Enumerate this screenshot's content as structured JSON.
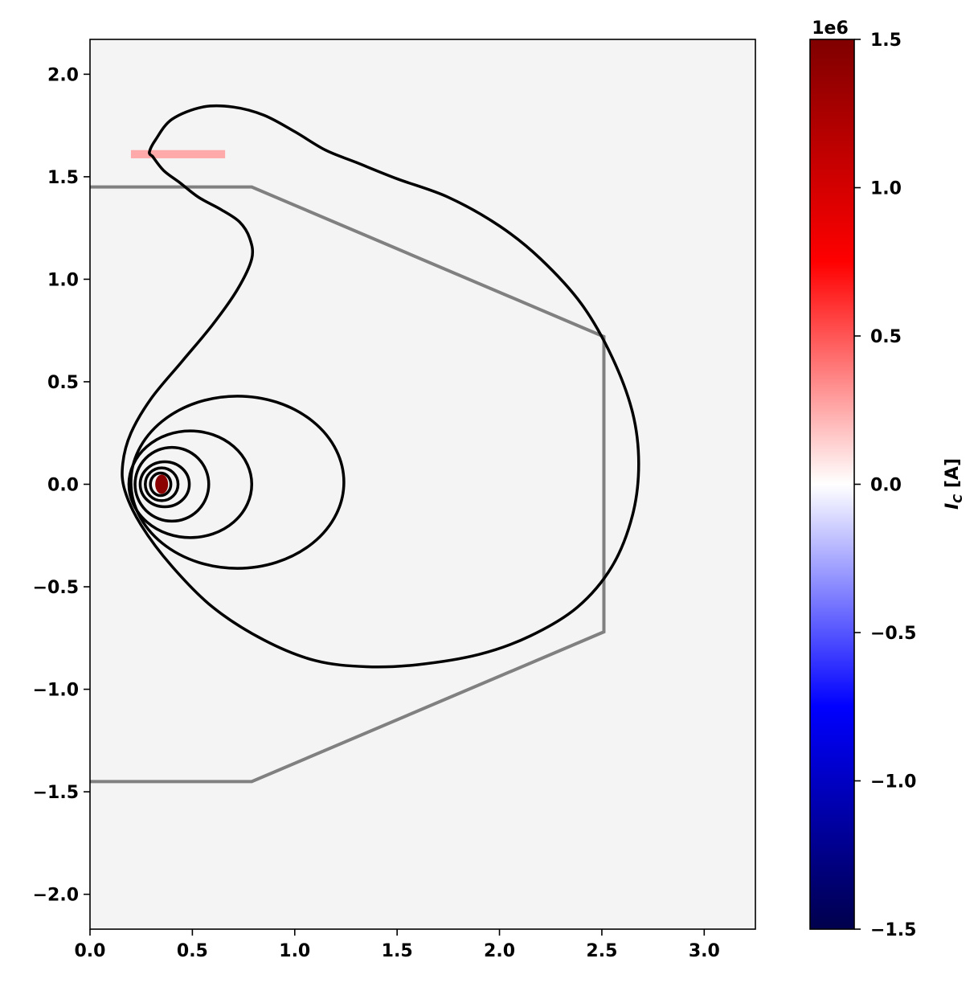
{
  "chart_data": [
    {
      "type": "contour",
      "xlim": [
        0,
        3.25
      ],
      "ylim": [
        -2.17,
        2.17
      ],
      "background": "#f4f4f4",
      "x_ticks": [
        "0.0",
        "0.5",
        "1.0",
        "1.5",
        "2.0",
        "2.5",
        "3.0"
      ],
      "x_tick_values": [
        0,
        0.5,
        1.0,
        1.5,
        2.0,
        2.5,
        3.0
      ],
      "y_ticks": [
        "2.0",
        "1.5",
        "1.0",
        "0.5",
        "0.0",
        "−0.5",
        "−1.0",
        "−1.5",
        "−2.0"
      ],
      "y_tick_values": [
        2.0,
        1.5,
        1.0,
        0.5,
        0.0,
        -0.5,
        -1.0,
        -1.5,
        -2.0
      ],
      "limiter": {
        "color": "#808080",
        "points": [
          [
            0.0,
            1.45
          ],
          [
            0.79,
            1.45
          ],
          [
            2.51,
            0.72
          ],
          [
            2.51,
            -0.72
          ],
          [
            0.79,
            -1.45
          ],
          [
            0.0,
            -1.45
          ]
        ]
      },
      "coil": {
        "color": "#ffaaaa",
        "x_range": [
          0.2,
          0.66
        ],
        "y_range": [
          1.59,
          1.63
        ]
      },
      "magnetic_axis": {
        "r": 0.35,
        "z": 0.0,
        "color": "#8b0000"
      },
      "flux_contours": [
        {
          "kind": "separatrix",
          "points": [
            [
              0.305,
              1.6
            ],
            [
              0.29,
              1.62
            ],
            [
              0.32,
              1.68
            ],
            [
              0.4,
              1.78
            ],
            [
              0.55,
              1.84
            ],
            [
              0.7,
              1.84
            ],
            [
              0.85,
              1.8
            ],
            [
              1.0,
              1.72
            ],
            [
              1.15,
              1.63
            ],
            [
              1.3,
              1.57
            ],
            [
              1.5,
              1.49
            ],
            [
              1.75,
              1.4
            ],
            [
              2.0,
              1.26
            ],
            [
              2.2,
              1.1
            ],
            [
              2.4,
              0.88
            ],
            [
              2.55,
              0.62
            ],
            [
              2.65,
              0.35
            ],
            [
              2.68,
              0.1
            ],
            [
              2.65,
              -0.15
            ],
            [
              2.55,
              -0.4
            ],
            [
              2.38,
              -0.6
            ],
            [
              2.15,
              -0.74
            ],
            [
              1.9,
              -0.83
            ],
            [
              1.6,
              -0.88
            ],
            [
              1.35,
              -0.89
            ],
            [
              1.1,
              -0.86
            ],
            [
              0.85,
              -0.76
            ],
            [
              0.6,
              -0.6
            ],
            [
              0.4,
              -0.4
            ],
            [
              0.25,
              -0.2
            ],
            [
              0.17,
              -0.03
            ],
            [
              0.16,
              0.1
            ],
            [
              0.2,
              0.25
            ],
            [
              0.3,
              0.42
            ],
            [
              0.45,
              0.6
            ],
            [
              0.6,
              0.78
            ],
            [
              0.72,
              0.95
            ],
            [
              0.79,
              1.1
            ],
            [
              0.78,
              1.2
            ],
            [
              0.73,
              1.28
            ],
            [
              0.64,
              1.34
            ],
            [
              0.53,
              1.4
            ],
            [
              0.44,
              1.47
            ],
            [
              0.36,
              1.53
            ],
            [
              0.305,
              1.6
            ]
          ]
        },
        {
          "kind": "ellipse",
          "center": [
            0.72,
            0.01
          ],
          "rx": 0.52,
          "ry_top": 0.42,
          "ry_bottom": 0.42
        },
        {
          "kind": "ellipse",
          "center": [
            0.49,
            0.0
          ],
          "rx": 0.3,
          "ry_top": 0.26,
          "ry_bottom": 0.26
        },
        {
          "kind": "ellipse",
          "center": [
            0.4,
            0.0
          ],
          "rx": 0.18,
          "ry_top": 0.18,
          "ry_bottom": 0.18
        },
        {
          "kind": "ellipse",
          "center": [
            0.365,
            0.0
          ],
          "rx": 0.12,
          "ry_top": 0.11,
          "ry_bottom": 0.11
        },
        {
          "kind": "ellipse",
          "center": [
            0.35,
            0.0
          ],
          "rx": 0.08,
          "ry_top": 0.08,
          "ry_bottom": 0.08
        },
        {
          "kind": "ellipse",
          "center": [
            0.345,
            0.0
          ],
          "rx": 0.05,
          "ry_top": 0.055,
          "ry_bottom": 0.055
        }
      ]
    },
    {
      "type": "colorbar",
      "label": "I",
      "label_subscript": "C",
      "label_unit": " [A]",
      "offset_text": "1e6",
      "range": [
        -1.5,
        1.5
      ],
      "colormap": "seismic",
      "colormap_stops": [
        "#00004c",
        "#0000ff",
        "#ffffff",
        "#ff0000",
        "#7f0000"
      ],
      "ticks": [
        "1.5",
        "1.0",
        "0.5",
        "0.0",
        "−0.5",
        "−1.0",
        "−1.5"
      ],
      "tick_values": [
        1.5,
        1.0,
        0.5,
        0.0,
        -0.5,
        -1.0,
        -1.5
      ]
    }
  ]
}
